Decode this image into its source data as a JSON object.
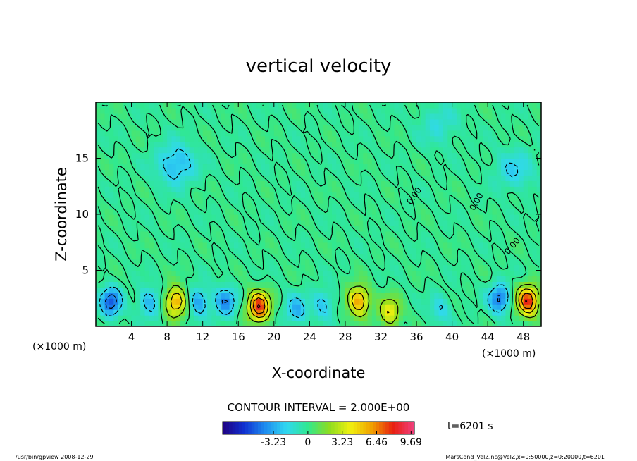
{
  "chart_data": {
    "type": "heatmap",
    "title": "vertical velocity",
    "xlabel": "X-coordinate",
    "ylabel": "Z-coordinate",
    "x_unit_left": "(×1000 m)",
    "x_unit_right": "(×1000 m)",
    "xlim": [
      0,
      50
    ],
    "ylim": [
      0,
      20
    ],
    "x_ticks": [
      4,
      8,
      12,
      16,
      20,
      24,
      28,
      32,
      36,
      40,
      44,
      48
    ],
    "y_ticks": [
      5,
      10,
      15
    ],
    "contour_label": "0.00",
    "contour_interval_text": "CONTOUR INTERVAL = 2.000E+00",
    "time_label": "t=6201 s",
    "colorbar": {
      "tick_values": [
        -3.23,
        0,
        3.23,
        6.46,
        9.69
      ],
      "tick_labels": [
        "-3.23",
        "0",
        "3.23",
        "6.46",
        "9.69"
      ],
      "range": [
        -8,
        10
      ],
      "colors": [
        "#200080",
        "#1030d0",
        "#1e8cf0",
        "#30d8f0",
        "#30e890",
        "#8cdc20",
        "#f0f010",
        "#f0a000",
        "#e82010",
        "#f04080"
      ]
    },
    "features": [
      {
        "kind": "downdraft",
        "x": 1.7,
        "z": 2.2,
        "value": -5
      },
      {
        "kind": "downdraft",
        "x": 6.0,
        "z": 2.2,
        "value": -3
      },
      {
        "kind": "updraft",
        "x": 9.0,
        "z": 2.2,
        "value": 6
      },
      {
        "kind": "downdraft",
        "x": 11.5,
        "z": 2.2,
        "value": -3.5
      },
      {
        "kind": "downdraft",
        "x": 14.5,
        "z": 2.2,
        "value": -4
      },
      {
        "kind": "updraft",
        "x": 18.3,
        "z": 1.8,
        "value": 8
      },
      {
        "kind": "downdraft",
        "x": 22.5,
        "z": 1.5,
        "value": -3
      },
      {
        "kind": "downdraft",
        "x": 25.5,
        "z": 2.0,
        "value": -2.5
      },
      {
        "kind": "updraft",
        "x": 29.5,
        "z": 2.3,
        "value": 6
      },
      {
        "kind": "updraft",
        "x": 33.0,
        "z": 1.3,
        "value": 4
      },
      {
        "kind": "downdraft",
        "x": 38.7,
        "z": 1.6,
        "value": -2
      },
      {
        "kind": "downdraft",
        "x": 45.3,
        "z": 2.5,
        "value": -4.5
      },
      {
        "kind": "updraft",
        "x": 48.5,
        "z": 2.3,
        "value": 8
      },
      {
        "kind": "downdraft",
        "x": 9.0,
        "z": 14.5,
        "value": -3
      },
      {
        "kind": "downdraft",
        "x": 38.5,
        "z": 18.0,
        "value": -1.5
      },
      {
        "kind": "downdraft",
        "x": 47.0,
        "z": 14.0,
        "value": -2
      }
    ]
  },
  "footer": {
    "left": "/usr/bin/gpview   2008-12-29",
    "right": "MarsCond_VelZ.nc@VelZ,x=0:50000,z=0:20000,t=6201"
  }
}
